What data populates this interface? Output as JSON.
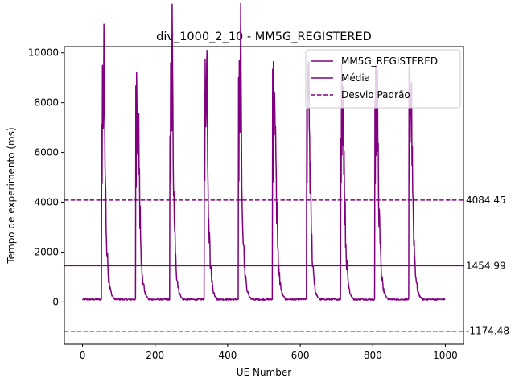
{
  "chart_data": {
    "type": "line",
    "title": "div_1000_2_10 - MM5G_REGISTERED",
    "xlabel": "UE Number",
    "ylabel": "Tempo de experimento (ms)",
    "xlim": [
      -50,
      1050
    ],
    "ylim": [
      -1700,
      10250
    ],
    "xticks": [
      0,
      200,
      400,
      600,
      800,
      1000
    ],
    "yticks": [
      0,
      2000,
      4000,
      6000,
      8000,
      10000
    ],
    "color": "#800080",
    "grid": false,
    "legend_position": "top-right",
    "series": [
      {
        "name": "MM5G_REGISTERED",
        "style": "solid",
        "n_points": 1000,
        "baseline": 100,
        "bursts": [
          {
            "start": 53,
            "peak": 9500
          },
          {
            "start": 147,
            "peak": 9200
          },
          {
            "start": 241,
            "peak": 9600
          },
          {
            "start": 336,
            "peak": 9750
          },
          {
            "start": 430,
            "peak": 9700
          },
          {
            "start": 524,
            "peak": 9650
          },
          {
            "start": 618,
            "peak": 9600
          },
          {
            "start": 712,
            "peak": 9550
          },
          {
            "start": 806,
            "peak": 9500
          },
          {
            "start": 900,
            "peak": 9650
          }
        ]
      }
    ],
    "hlines": [
      {
        "name": "Média",
        "value": 1454.99,
        "label": "1454.99",
        "style": "solid"
      },
      {
        "name": "Desvio Padrão",
        "value": 4084.45,
        "label": "4084.45",
        "style": "dashed"
      },
      {
        "value": -1174.48,
        "label": "-1174.48",
        "style": "dashed"
      }
    ],
    "legend": [
      "MM5G_REGISTERED",
      "Média",
      "Desvio Padrão"
    ]
  }
}
